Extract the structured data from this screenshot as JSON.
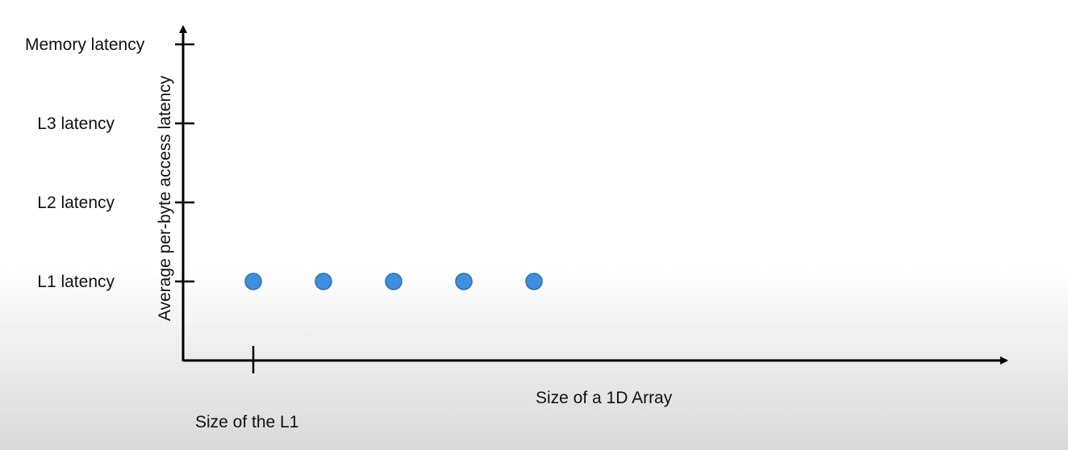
{
  "chart_data": {
    "type": "scatter",
    "title": "",
    "xlabel": "Size of a 1D Array",
    "ylabel": "Average per-byte access latency",
    "x_ticks": [
      {
        "label": "Size of the L1",
        "value": 1
      }
    ],
    "y_ticks": [
      {
        "label": "L1 latency",
        "value": 1
      },
      {
        "label": "L2 latency",
        "value": 2
      },
      {
        "label": "L3 latency",
        "value": 3
      },
      {
        "label": "Memory latency",
        "value": 4
      }
    ],
    "xlim": [
      0,
      10.4
    ],
    "ylim": [
      0,
      4.3
    ],
    "grid": false,
    "series": [
      {
        "color": "#3f8fe0",
        "points": [
          {
            "x": 1,
            "y": 1
          },
          {
            "x": 2,
            "y": 1
          },
          {
            "x": 3,
            "y": 1
          },
          {
            "x": 4,
            "y": 1
          },
          {
            "x": 5,
            "y": 1
          }
        ]
      }
    ]
  }
}
